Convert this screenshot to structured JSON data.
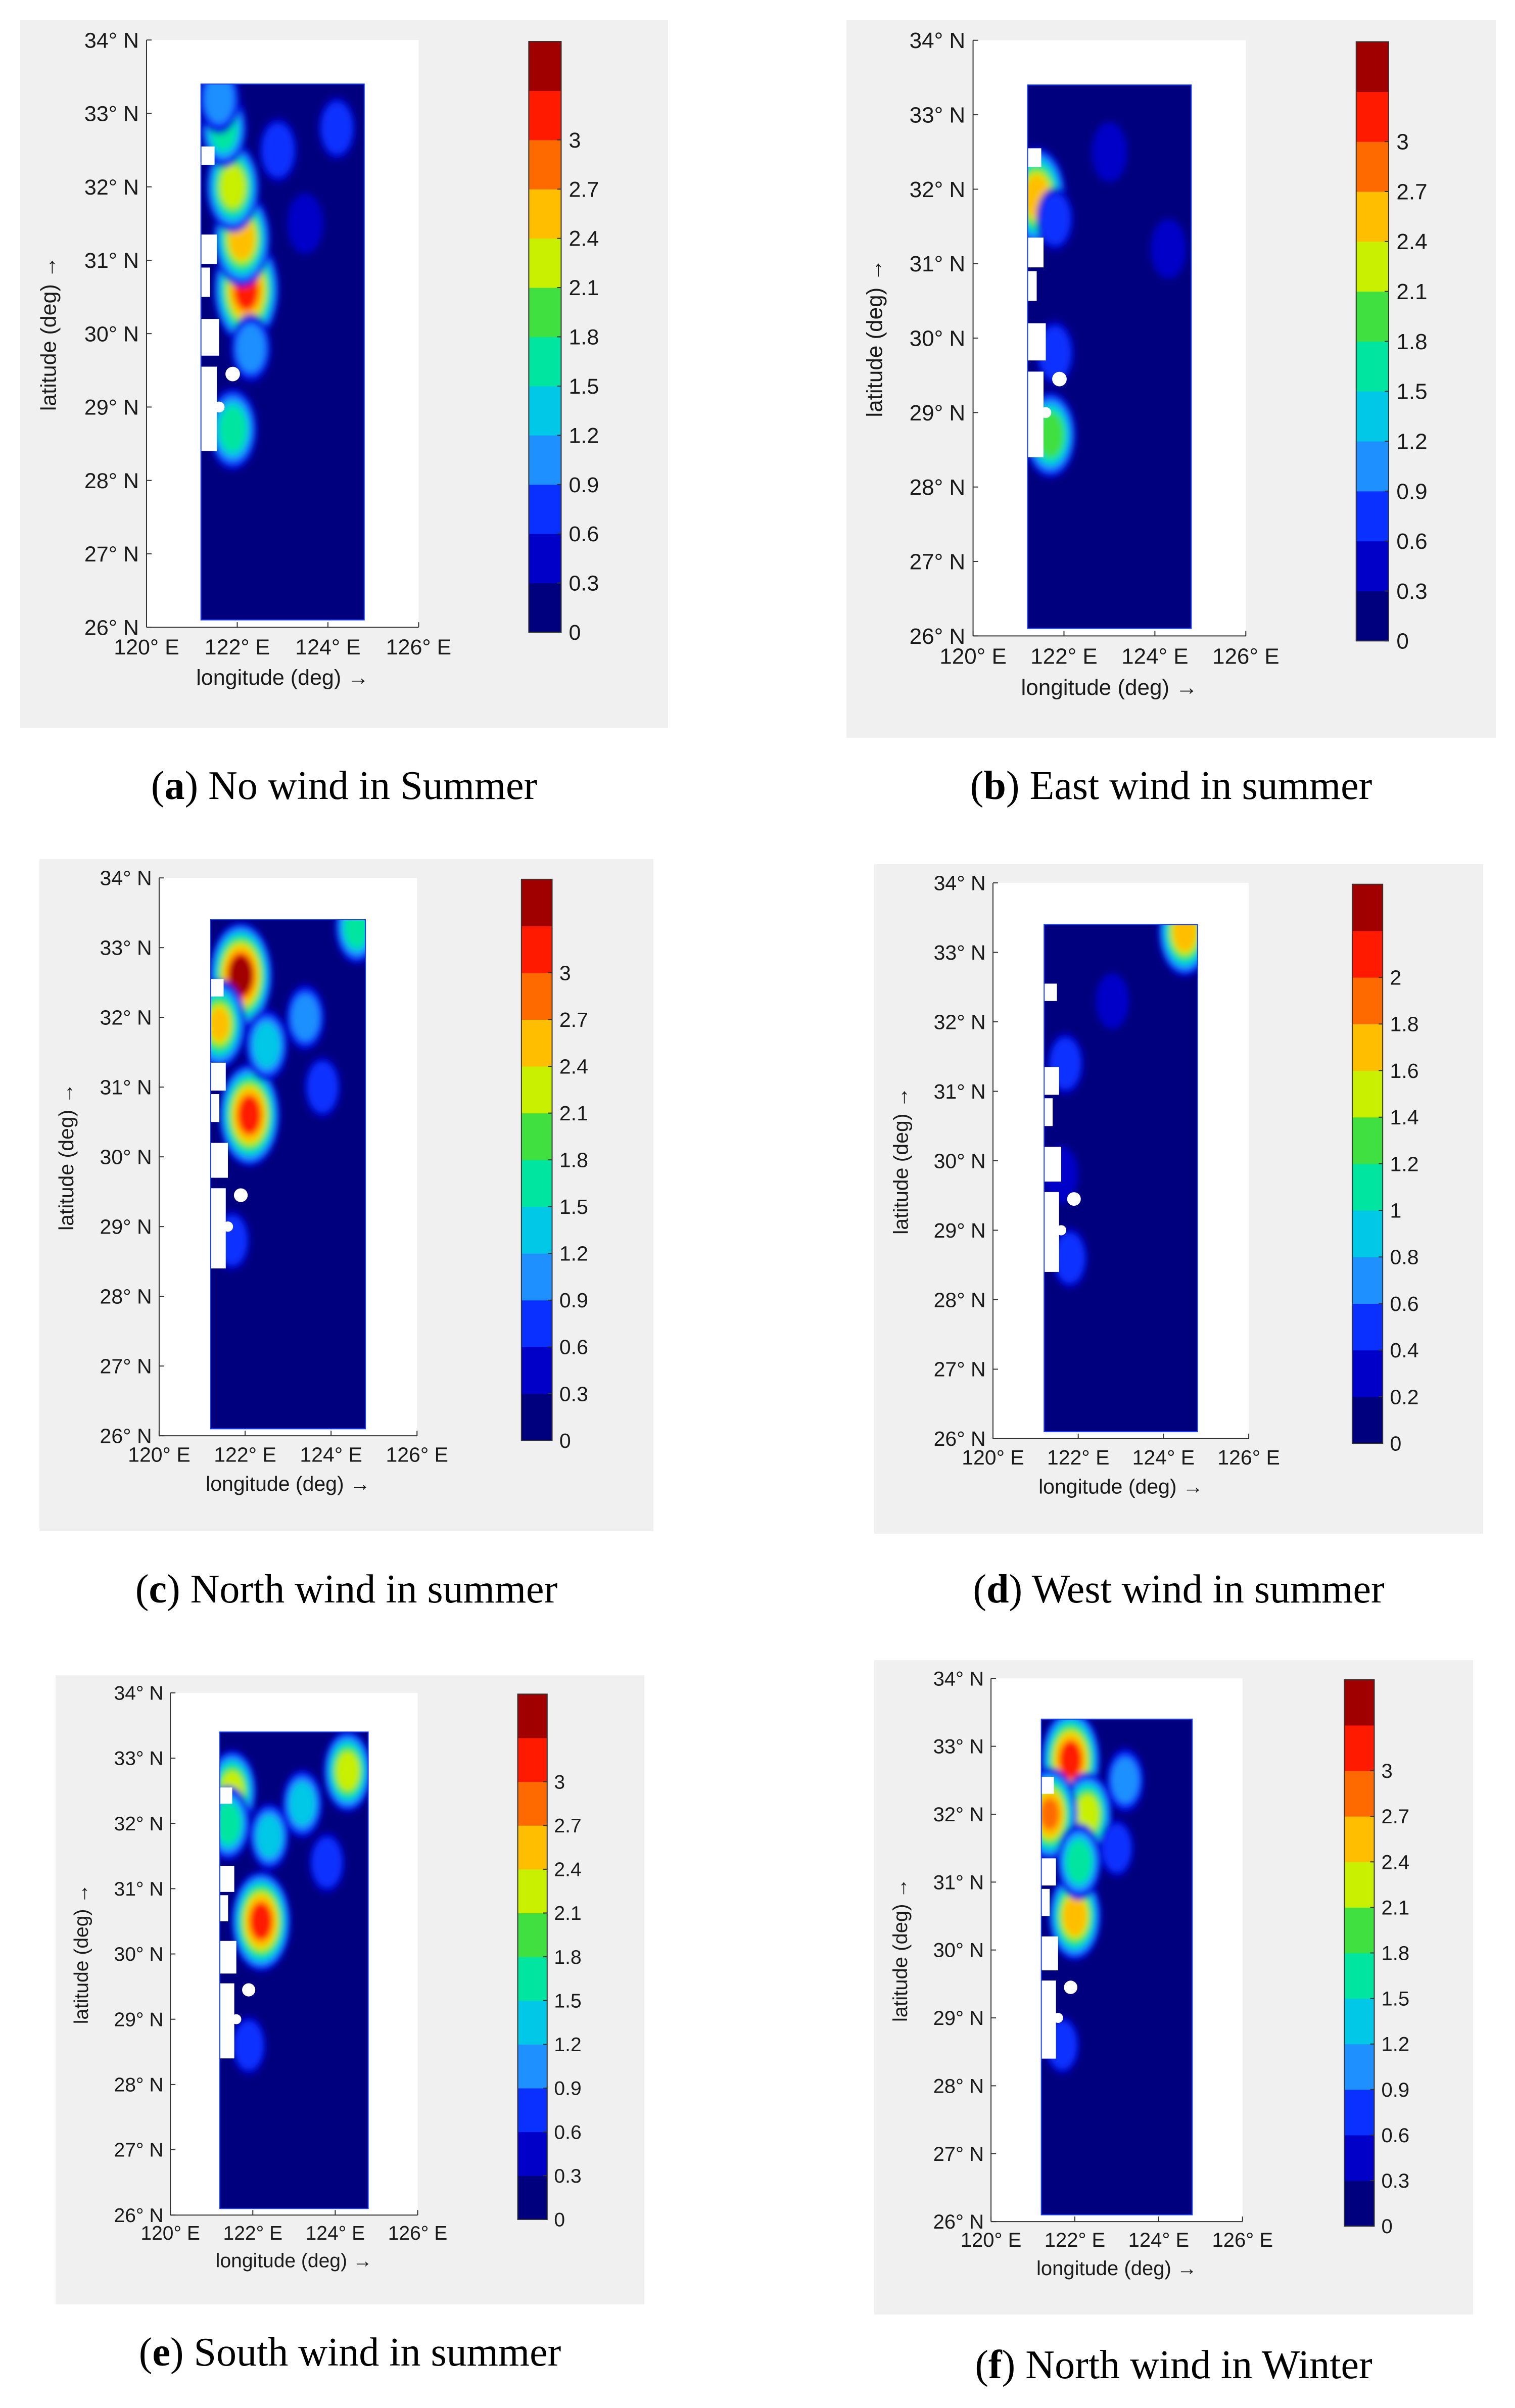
{
  "figure": {
    "units": {
      "lon": "E",
      "lat": "N"
    }
  },
  "chart_data": [
    {
      "type": "heatmap",
      "panel_letter": "a",
      "caption": "No wind in Summer",
      "xlabel": "longitude (deg) →",
      "ylabel": "latitude (deg) →",
      "x_ticks": [
        "120° E",
        "122° E",
        "124° E",
        "126° E"
      ],
      "y_ticks": [
        "26° N",
        "27° N",
        "28° N",
        "29° N",
        "30° N",
        "31° N",
        "32° N",
        "33° N",
        "34° N"
      ],
      "xlim": [
        120,
        126
      ],
      "ylim": [
        26,
        34
      ],
      "domain_lon": [
        121.2,
        124.8
      ],
      "domain_lat": [
        26.1,
        33.4
      ],
      "colorbar_ticks": [
        "0",
        "0.3",
        "0.6",
        "0.9",
        "1.2",
        "1.5",
        "1.8",
        "2.1",
        "2.4",
        "2.7",
        "3"
      ],
      "colorbar_range": [
        0,
        3.3
      ],
      "hotspots": [
        {
          "lon": 122.2,
          "lat": 30.6,
          "value": 3.0
        },
        {
          "lon": 122.1,
          "lat": 31.3,
          "value": 2.3
        },
        {
          "lon": 121.9,
          "lat": 32.0,
          "value": 2.0
        },
        {
          "lon": 121.7,
          "lat": 32.8,
          "value": 1.4
        },
        {
          "lon": 121.9,
          "lat": 28.7,
          "value": 1.6
        },
        {
          "lon": 121.6,
          "lat": 33.2,
          "value": 1.0
        },
        {
          "lon": 122.9,
          "lat": 32.5,
          "value": 0.7
        },
        {
          "lon": 123.5,
          "lat": 31.5,
          "value": 0.5
        },
        {
          "lon": 124.2,
          "lat": 32.8,
          "value": 0.6
        },
        {
          "lon": 122.3,
          "lat": 29.8,
          "value": 0.9
        }
      ]
    },
    {
      "type": "heatmap",
      "panel_letter": "b",
      "caption": "East wind in summer",
      "xlabel": "longitude (deg) →",
      "ylabel": "latitude (deg) →",
      "x_ticks": [
        "120° E",
        "122° E",
        "124° E",
        "126° E"
      ],
      "y_ticks": [
        "26° N",
        "27° N",
        "28° N",
        "29° N",
        "30° N",
        "31° N",
        "32° N",
        "33° N",
        "34° N"
      ],
      "xlim": [
        120,
        126
      ],
      "ylim": [
        26,
        34
      ],
      "domain_lon": [
        121.2,
        124.8
      ],
      "domain_lat": [
        26.1,
        33.4
      ],
      "colorbar_ticks": [
        "0",
        "0.3",
        "0.6",
        "0.9",
        "1.2",
        "1.5",
        "1.8",
        "2.1",
        "2.4",
        "2.7",
        "3"
      ],
      "colorbar_range": [
        0,
        3.3
      ],
      "hotspots": [
        {
          "lon": 121.4,
          "lat": 31.9,
          "value": 2.4
        },
        {
          "lon": 121.7,
          "lat": 28.7,
          "value": 1.8
        },
        {
          "lon": 121.8,
          "lat": 29.8,
          "value": 0.7
        },
        {
          "lon": 121.8,
          "lat": 31.6,
          "value": 0.6
        },
        {
          "lon": 123.0,
          "lat": 32.5,
          "value": 0.45
        },
        {
          "lon": 124.3,
          "lat": 31.2,
          "value": 0.45
        }
      ]
    },
    {
      "type": "heatmap",
      "panel_letter": "c",
      "caption": "North wind in summer",
      "xlabel": "longitude (deg) →",
      "ylabel": "latitude (deg) →",
      "x_ticks": [
        "120° E",
        "122° E",
        "124° E",
        "126° E"
      ],
      "y_ticks": [
        "26° N",
        "27° N",
        "28° N",
        "29° N",
        "30° N",
        "31° N",
        "32° N",
        "33° N",
        "34° N"
      ],
      "xlim": [
        120,
        126
      ],
      "ylim": [
        26,
        34
      ],
      "domain_lon": [
        121.2,
        124.8
      ],
      "domain_lat": [
        26.1,
        33.4
      ],
      "colorbar_ticks": [
        "0",
        "0.3",
        "0.6",
        "0.9",
        "1.2",
        "1.5",
        "1.8",
        "2.1",
        "2.4",
        "2.7",
        "3"
      ],
      "colorbar_range": [
        0,
        3.3
      ],
      "hotspots": [
        {
          "lon": 121.9,
          "lat": 32.6,
          "value": 3.1
        },
        {
          "lon": 122.1,
          "lat": 30.6,
          "value": 2.9
        },
        {
          "lon": 121.4,
          "lat": 31.9,
          "value": 2.2
        },
        {
          "lon": 122.5,
          "lat": 31.6,
          "value": 1.3
        },
        {
          "lon": 123.4,
          "lat": 32.0,
          "value": 1.0
        },
        {
          "lon": 124.6,
          "lat": 33.3,
          "value": 1.4
        },
        {
          "lon": 123.8,
          "lat": 31.0,
          "value": 0.7
        },
        {
          "lon": 121.7,
          "lat": 28.8,
          "value": 0.6
        }
      ]
    },
    {
      "type": "heatmap",
      "panel_letter": "d",
      "caption": "West wind in summer",
      "xlabel": "longitude (deg) →",
      "ylabel": "latitude (deg) →",
      "x_ticks": [
        "120° E",
        "122° E",
        "124° E",
        "126° E"
      ],
      "y_ticks": [
        "26° N",
        "27° N",
        "28° N",
        "29° N",
        "30° N",
        "31° N",
        "32° N",
        "33° N",
        "34° N"
      ],
      "xlim": [
        120,
        126
      ],
      "ylim": [
        26,
        34
      ],
      "domain_lon": [
        121.2,
        124.8
      ],
      "domain_lat": [
        26.1,
        33.4
      ],
      "colorbar_ticks": [
        "0",
        "0.2",
        "0.4",
        "0.6",
        "0.8",
        "1",
        "1.2",
        "1.4",
        "1.6",
        "1.8",
        "2"
      ],
      "colorbar_range": [
        0,
        2.2
      ],
      "hotspots": [
        {
          "lon": 124.5,
          "lat": 33.3,
          "value": 1.5
        },
        {
          "lon": 121.7,
          "lat": 31.4,
          "value": 0.5
        },
        {
          "lon": 121.8,
          "lat": 28.6,
          "value": 0.45
        },
        {
          "lon": 121.6,
          "lat": 29.8,
          "value": 0.35
        },
        {
          "lon": 122.8,
          "lat": 32.3,
          "value": 0.3
        }
      ]
    },
    {
      "type": "heatmap",
      "panel_letter": "e",
      "caption": "South wind in summer",
      "xlabel": "longitude (deg) →",
      "ylabel": "latitude (deg) →",
      "x_ticks": [
        "120° E",
        "122° E",
        "124° E",
        "126° E"
      ],
      "y_ticks": [
        "26° N",
        "27° N",
        "28° N",
        "29° N",
        "30° N",
        "31° N",
        "32° N",
        "33° N",
        "34° N"
      ],
      "xlim": [
        120,
        126
      ],
      "ylim": [
        26,
        34
      ],
      "domain_lon": [
        121.2,
        124.8
      ],
      "domain_lat": [
        26.1,
        33.4
      ],
      "colorbar_ticks": [
        "0",
        "0.3",
        "0.6",
        "0.9",
        "1.2",
        "1.5",
        "1.8",
        "2.1",
        "2.4",
        "2.7",
        "3"
      ],
      "colorbar_range": [
        0,
        3.3
      ],
      "hotspots": [
        {
          "lon": 122.2,
          "lat": 30.5,
          "value": 3.0
        },
        {
          "lon": 121.5,
          "lat": 32.5,
          "value": 2.0
        },
        {
          "lon": 124.3,
          "lat": 32.8,
          "value": 2.0
        },
        {
          "lon": 123.2,
          "lat": 32.3,
          "value": 1.3
        },
        {
          "lon": 122.4,
          "lat": 31.8,
          "value": 1.2
        },
        {
          "lon": 121.4,
          "lat": 32.0,
          "value": 1.6
        },
        {
          "lon": 123.8,
          "lat": 31.4,
          "value": 0.8
        },
        {
          "lon": 121.9,
          "lat": 28.6,
          "value": 0.7
        }
      ]
    },
    {
      "type": "heatmap",
      "panel_letter": "f",
      "caption": "North wind in Winter",
      "xlabel": "longitude (deg) →",
      "ylabel": "latitude (deg) →",
      "x_ticks": [
        "120° E",
        "122° E",
        "124° E",
        "126° E"
      ],
      "y_ticks": [
        "26° N",
        "27° N",
        "28° N",
        "29° N",
        "30° N",
        "31° N",
        "32° N",
        "33° N",
        "34° N"
      ],
      "xlim": [
        120,
        126
      ],
      "ylim": [
        26,
        34
      ],
      "domain_lon": [
        121.2,
        124.8
      ],
      "domain_lat": [
        26.1,
        33.4
      ],
      "colorbar_ticks": [
        "0",
        "0.3",
        "0.6",
        "0.9",
        "1.2",
        "1.5",
        "1.8",
        "2.1",
        "2.4",
        "2.7",
        "3"
      ],
      "colorbar_range": [
        0,
        3.3
      ],
      "hotspots": [
        {
          "lon": 121.9,
          "lat": 32.8,
          "value": 2.9
        },
        {
          "lon": 122.0,
          "lat": 30.5,
          "value": 2.3
        },
        {
          "lon": 122.3,
          "lat": 32.0,
          "value": 2.0
        },
        {
          "lon": 121.4,
          "lat": 32.0,
          "value": 2.5
        },
        {
          "lon": 122.1,
          "lat": 31.3,
          "value": 1.6
        },
        {
          "lon": 123.2,
          "lat": 32.5,
          "value": 1.0
        },
        {
          "lon": 123.0,
          "lat": 31.5,
          "value": 0.6
        },
        {
          "lon": 121.7,
          "lat": 28.6,
          "value": 0.6
        }
      ]
    }
  ]
}
